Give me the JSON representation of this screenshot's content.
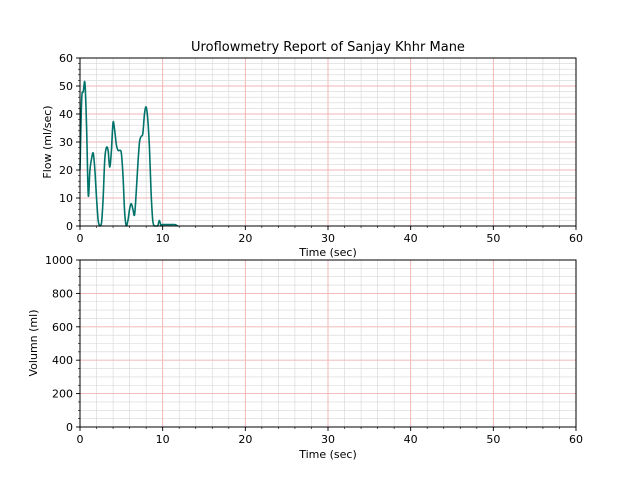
{
  "colors": {
    "flow_line": "#00736b",
    "major_grid": "#f2b5b5",
    "minor_grid": "#d6d6d6",
    "axes": "#000000"
  },
  "chart_data": [
    {
      "type": "line",
      "title": "Uroflowmetry Report of  Sanjay Khhr Mane",
      "xlabel": "Time (sec)",
      "ylabel": "Flow (ml/sec)",
      "xlim": [
        0,
        60
      ],
      "ylim": [
        0,
        60
      ],
      "xticks": [
        0,
        10,
        20,
        30,
        40,
        50,
        60
      ],
      "yticks": [
        0,
        10,
        20,
        30,
        40,
        50,
        60
      ],
      "grid": true,
      "series": [
        {
          "x": [
            0.0,
            0.2,
            0.4,
            0.6,
            0.8,
            1.0,
            1.2,
            1.4,
            1.6,
            1.8,
            2.0,
            2.2,
            2.4,
            2.6,
            2.8,
            3.0,
            3.2,
            3.4,
            3.6,
            3.8,
            4.0,
            4.2,
            4.4,
            4.6,
            4.8,
            5.0,
            5.2,
            5.4,
            5.6,
            5.8,
            6.0,
            6.2,
            6.4,
            6.6,
            6.8,
            7.0,
            7.2,
            7.4,
            7.6,
            7.8,
            8.0,
            8.2,
            8.4,
            8.6,
            8.8,
            9.0,
            9.2,
            9.4,
            9.6,
            9.8,
            9.9,
            10.0,
            10.1,
            10.2,
            10.3,
            10.5,
            11.0,
            11.5,
            11.8
          ],
          "y": [
            20,
            45,
            48,
            51,
            35,
            11,
            20,
            24,
            26,
            20,
            10,
            2,
            0,
            1,
            10,
            24,
            28,
            27,
            21,
            27,
            37,
            34,
            29,
            27,
            27,
            26,
            18,
            5,
            0,
            2,
            6,
            8,
            6,
            4,
            12,
            22,
            30,
            32,
            33,
            40,
            42.5,
            38,
            28,
            12,
            2,
            0,
            0,
            0,
            2,
            0,
            0.5,
            0.5,
            0.5,
            0.5,
            0.5,
            0.5,
            0.5,
            0.5,
            0
          ]
        }
      ]
    },
    {
      "type": "line",
      "title": "",
      "xlabel": "Time (sec)",
      "ylabel": "Volumn (ml)",
      "xlim": [
        0,
        60
      ],
      "ylim": [
        0,
        1000
      ],
      "xticks": [
        0,
        10,
        20,
        30,
        40,
        50,
        60
      ],
      "yticks": [
        0,
        200,
        400,
        600,
        800,
        1000
      ],
      "grid": true,
      "series": []
    }
  ]
}
